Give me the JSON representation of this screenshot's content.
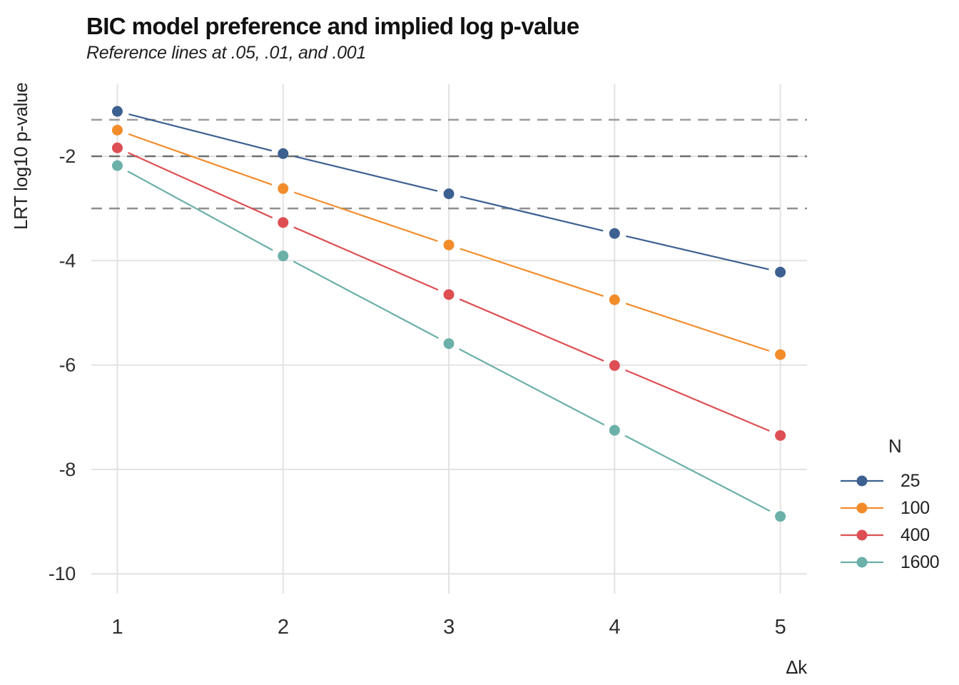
{
  "title": "BIC model preference and implied log p-value",
  "subtitle": "Reference lines at .05, .01, and .001",
  "chart_data": {
    "type": "line",
    "title": "BIC model preference and implied log p-value",
    "subtitle": "Reference lines at .05, .01, and .001",
    "xlabel": "Δk",
    "ylabel": "LRT log10 p-value",
    "x": [
      1,
      2,
      3,
      4,
      5
    ],
    "x_ticks": [
      "1",
      "2",
      "3",
      "4",
      "5"
    ],
    "y_ticks": [
      -2,
      -4,
      -6,
      -8,
      -10
    ],
    "y_tick_labels": [
      "-2",
      "-4",
      "-6",
      "-8",
      "-10"
    ],
    "xlim": [
      0.843,
      5.161
    ],
    "ylim": [
      -10.38,
      -0.62
    ],
    "grid": true,
    "grid_color": "#e2e2e2",
    "series": [
      {
        "name": "25",
        "color": "#3c6090",
        "values": [
          -1.14,
          -1.95,
          -2.72,
          -3.48,
          -4.22
        ]
      },
      {
        "name": "100",
        "color": "#f28c2b",
        "values": [
          -1.5,
          -2.62,
          -3.7,
          -4.75,
          -5.8
        ]
      },
      {
        "name": "400",
        "color": "#dd4f53",
        "values": [
          -1.84,
          -3.27,
          -4.65,
          -6.01,
          -7.35
        ]
      },
      {
        "name": "1600",
        "color": "#6bb0a9",
        "values": [
          -2.18,
          -3.91,
          -5.59,
          -7.25,
          -8.9
        ]
      }
    ],
    "reference_lines": [
      {
        "label": ".05",
        "value": -1.301,
        "color": "#9a9a9a",
        "style": "dashed"
      },
      {
        "label": ".01",
        "value": -2.0,
        "color": "#6e6e6e",
        "style": "dashed"
      },
      {
        "label": ".001",
        "value": -3.0,
        "color": "#8f8f8f",
        "style": "dashed"
      }
    ],
    "legend": {
      "title": "N",
      "position": "right"
    }
  }
}
